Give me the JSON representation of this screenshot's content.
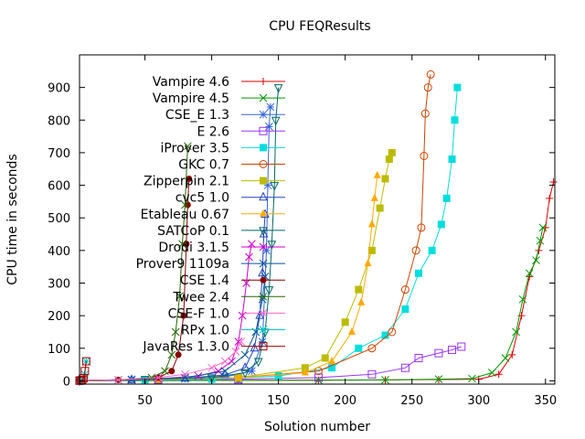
{
  "chart_data": {
    "type": "line",
    "title": "CPU FEQResults",
    "xlabel": "Solution number",
    "ylabel": "CPU time in seconds",
    "xlim": [
      1,
      357
    ],
    "ylim": [
      -10,
      1000
    ],
    "x_ticks": [
      50,
      100,
      150,
      200,
      250,
      300,
      350
    ],
    "y_ticks": [
      0,
      100,
      200,
      300,
      400,
      500,
      600,
      700,
      800,
      900
    ],
    "grid": false,
    "legend_position": "top-left",
    "series": [
      {
        "name": "Vampire 4.6",
        "color": "#dd0000",
        "marker": "plus",
        "points": [
          [
            1,
            0.5
          ],
          [
            60,
            1
          ],
          [
            120,
            1.5
          ],
          [
            180,
            2
          ],
          [
            230,
            3
          ],
          [
            270,
            4
          ],
          [
            300,
            5
          ],
          [
            315,
            20
          ],
          [
            325,
            80
          ],
          [
            332,
            200
          ],
          [
            338,
            320
          ],
          [
            345,
            400
          ],
          [
            350,
            470
          ],
          [
            353,
            560
          ],
          [
            356,
            610
          ]
        ]
      },
      {
        "name": "Vampire 4.5",
        "color": "#009900",
        "marker": "cross",
        "points": [
          [
            1,
            0.5
          ],
          [
            60,
            1
          ],
          [
            120,
            1.5
          ],
          [
            180,
            2
          ],
          [
            230,
            3
          ],
          [
            270,
            5
          ],
          [
            295,
            7
          ],
          [
            310,
            25
          ],
          [
            320,
            70
          ],
          [
            328,
            150
          ],
          [
            333,
            250
          ],
          [
            338,
            330
          ],
          [
            343,
            370
          ],
          [
            346,
            430
          ],
          [
            348,
            470
          ]
        ]
      },
      {
        "name": "CSE_E 1.3",
        "color": "#3366dd",
        "marker": "star",
        "points": [
          [
            1,
            1
          ],
          [
            40,
            3
          ],
          [
            80,
            6
          ],
          [
            110,
            12
          ],
          [
            130,
            30
          ],
          [
            138,
            120
          ],
          [
            141,
            400
          ],
          [
            142,
            600
          ],
          [
            143,
            780
          ],
          [
            144,
            840
          ]
        ]
      },
      {
        "name": "E 2.6",
        "color": "#9933ff",
        "marker": "square",
        "points": [
          [
            1,
            1
          ],
          [
            60,
            3
          ],
          [
            120,
            5
          ],
          [
            180,
            10
          ],
          [
            220,
            20
          ],
          [
            245,
            40
          ],
          [
            255,
            70
          ],
          [
            270,
            85
          ],
          [
            280,
            95
          ],
          [
            287,
            105
          ]
        ]
      },
      {
        "name": "iProver 3.5",
        "color": "#00dddd",
        "marker": "filled-square",
        "points": [
          [
            1,
            1
          ],
          [
            50,
            3
          ],
          [
            100,
            5
          ],
          [
            150,
            15
          ],
          [
            190,
            40
          ],
          [
            210,
            100
          ],
          [
            230,
            140
          ],
          [
            245,
            220
          ],
          [
            255,
            330
          ],
          [
            265,
            400
          ],
          [
            272,
            480
          ],
          [
            276,
            560
          ],
          [
            280,
            680
          ],
          [
            282,
            800
          ],
          [
            284,
            900
          ]
        ]
      },
      {
        "name": "GKC 0.7",
        "color": "#cc4400",
        "marker": "circle",
        "points": [
          [
            1,
            1
          ],
          [
            60,
            5
          ],
          [
            120,
            10
          ],
          [
            180,
            30
          ],
          [
            220,
            100
          ],
          [
            235,
            150
          ],
          [
            245,
            280
          ],
          [
            253,
            400
          ],
          [
            257,
            470
          ],
          [
            259,
            690
          ],
          [
            260,
            820
          ],
          [
            262,
            900
          ],
          [
            264,
            940
          ]
        ]
      },
      {
        "name": "Zipperpin 2.1",
        "color": "#bbbb00",
        "marker": "filled-square",
        "points": [
          [
            1,
            1
          ],
          [
            60,
            5
          ],
          [
            120,
            10
          ],
          [
            170,
            40
          ],
          [
            185,
            70
          ],
          [
            200,
            180
          ],
          [
            210,
            280
          ],
          [
            220,
            400
          ],
          [
            226,
            530
          ],
          [
            230,
            620
          ],
          [
            233,
            680
          ],
          [
            235,
            700
          ]
        ]
      },
      {
        "name": "cvc5 1.0",
        "color": "#2244bb",
        "marker": "triangle",
        "points": [
          [
            1,
            1
          ],
          [
            40,
            3
          ],
          [
            80,
            8
          ],
          [
            110,
            18
          ],
          [
            125,
            40
          ],
          [
            132,
            100
          ],
          [
            136,
            200
          ],
          [
            138,
            330
          ],
          [
            139,
            450
          ],
          [
            140,
            510
          ]
        ]
      },
      {
        "name": "Etableau 0.67",
        "color": "#ffaa00",
        "marker": "filled-triangle",
        "points": [
          [
            1,
            1
          ],
          [
            60,
            5
          ],
          [
            120,
            10
          ],
          [
            170,
            25
          ],
          [
            190,
            60
          ],
          [
            205,
            150
          ],
          [
            212,
            240
          ],
          [
            217,
            360
          ],
          [
            220,
            480
          ],
          [
            222,
            560
          ],
          [
            224,
            630
          ]
        ]
      },
      {
        "name": "SATCoP 0.1",
        "color": "#006666",
        "marker": "triangle-down",
        "points": [
          [
            1,
            1
          ],
          [
            50,
            5
          ],
          [
            100,
            10
          ],
          [
            125,
            25
          ],
          [
            135,
            60
          ],
          [
            140,
            150
          ],
          [
            143,
            280
          ],
          [
            145,
            420
          ],
          [
            147,
            600
          ],
          [
            148,
            800
          ],
          [
            150,
            900
          ]
        ]
      },
      {
        "name": "Drodi 3.1.5",
        "color": "#cc00cc",
        "marker": "cross",
        "points": [
          [
            1,
            1
          ],
          [
            60,
            6
          ],
          [
            90,
            15
          ],
          [
            105,
            30
          ],
          [
            115,
            60
          ],
          [
            120,
            120
          ],
          [
            123,
            200
          ],
          [
            126,
            300
          ],
          [
            128,
            380
          ],
          [
            130,
            420
          ]
        ]
      },
      {
        "name": "Prover9 1109a",
        "color": "#005599",
        "marker": "cross",
        "points": [
          [
            1,
            1
          ],
          [
            40,
            4
          ],
          [
            80,
            10
          ],
          [
            110,
            30
          ],
          [
            125,
            80
          ],
          [
            133,
            150
          ],
          [
            138,
            250
          ],
          [
            140,
            320
          ]
        ]
      },
      {
        "name": "CSE 1.4",
        "color": "#880000",
        "marker": "filled-circle",
        "points": [
          [
            1,
            1
          ],
          [
            30,
            3
          ],
          [
            60,
            10
          ],
          [
            70,
            30
          ],
          [
            75,
            80
          ],
          [
            79,
            200
          ],
          [
            81,
            420
          ],
          [
            82,
            540
          ],
          [
            83,
            620
          ]
        ]
      },
      {
        "name": "Twee 2.4",
        "color": "#226600",
        "marker": "cross",
        "points": [
          [
            1,
            1
          ],
          [
            30,
            3
          ],
          [
            55,
            10
          ],
          [
            65,
            30
          ],
          [
            70,
            80
          ],
          [
            73,
            150
          ],
          [
            76,
            260
          ],
          [
            78,
            420
          ],
          [
            80,
            540
          ],
          [
            82,
            720
          ]
        ]
      },
      {
        "name": "CSE-F 1.0",
        "color": "#ff66cc",
        "marker": "cross",
        "points": [
          [
            1,
            1
          ],
          [
            30,
            3
          ],
          [
            60,
            10
          ],
          [
            80,
            20
          ],
          [
            100,
            40
          ],
          [
            110,
            60
          ],
          [
            118,
            90
          ],
          [
            122,
            120
          ]
        ]
      },
      {
        "name": "RPx 1.0",
        "color": "#00cccc",
        "marker": "star",
        "points": [
          [
            1,
            0.5
          ],
          [
            3,
            5
          ],
          [
            5,
            20
          ],
          [
            6,
            60
          ]
        ]
      },
      {
        "name": "JavaRes 1.3.0",
        "color": "#aa0000",
        "marker": "square",
        "points": [
          [
            1,
            0.5
          ],
          [
            2,
            1
          ],
          [
            3,
            3
          ],
          [
            4,
            8
          ],
          [
            5,
            30
          ],
          [
            6,
            60
          ]
        ]
      }
    ]
  }
}
